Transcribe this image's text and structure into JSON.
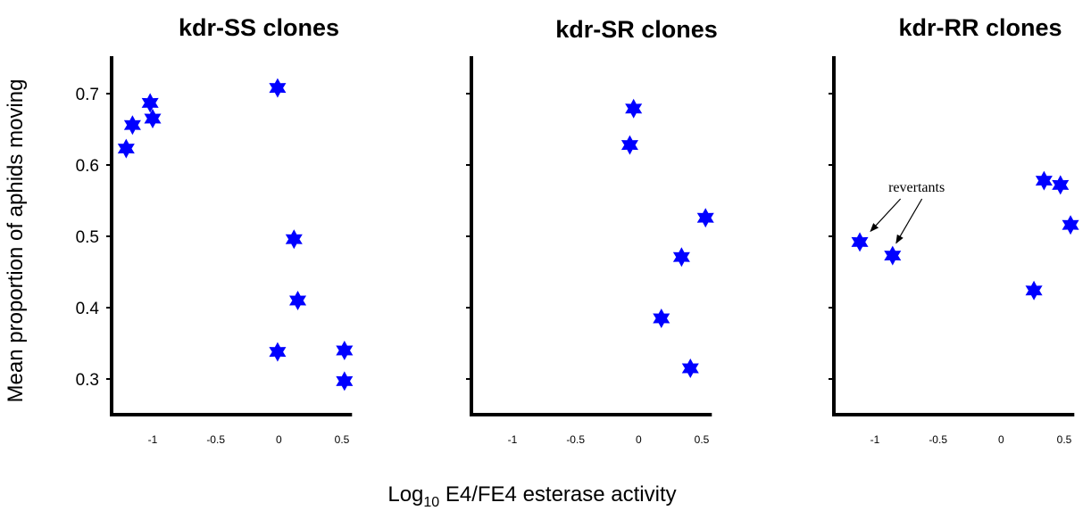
{
  "chart_data": {
    "type": "scatter",
    "ylabel": "Mean proportion of aphids moving",
    "xlabel_main": "Log",
    "xlabel_sub": "10",
    "xlabel_rest": " E4/FE4 esterase activity",
    "ylim": [
      0.25,
      0.75
    ],
    "yticks": [
      "0.3",
      "0.4",
      "0.5",
      "0.6",
      "0.7"
    ],
    "ytick_values": [
      0.3,
      0.4,
      0.5,
      0.6,
      0.7
    ],
    "xlim": [
      -1.3,
      0.58
    ],
    "xticks": [
      "-1",
      "-0.5",
      "0",
      "0.5"
    ],
    "xtick_values": [
      -1,
      -0.5,
      0,
      0.5
    ],
    "marker_color": "#0000ff",
    "marker_shape": "six-pointed-star",
    "grid": false,
    "panels": [
      {
        "title": "kdr-SS clones",
        "points": [
          {
            "x": -1.21,
            "y": 0.623
          },
          {
            "x": -1.16,
            "y": 0.656
          },
          {
            "x": -1.02,
            "y": 0.687
          },
          {
            "x": -1.0,
            "y": 0.665
          },
          {
            "x": -0.01,
            "y": 0.708
          },
          {
            "x": 0.12,
            "y": 0.496
          },
          {
            "x": 0.15,
            "y": 0.41
          },
          {
            "x": -0.01,
            "y": 0.338
          },
          {
            "x": 0.52,
            "y": 0.34
          },
          {
            "x": 0.52,
            "y": 0.297
          }
        ]
      },
      {
        "title": "kdr-SR clones",
        "points": [
          {
            "x": -0.04,
            "y": 0.679
          },
          {
            "x": -0.07,
            "y": 0.628
          },
          {
            "x": 0.53,
            "y": 0.526
          },
          {
            "x": 0.34,
            "y": 0.471
          },
          {
            "x": 0.18,
            "y": 0.385
          },
          {
            "x": 0.41,
            "y": 0.315
          }
        ]
      },
      {
        "title": "kdr-RR clones",
        "points": [
          {
            "x": -1.12,
            "y": 0.492
          },
          {
            "x": -0.86,
            "y": 0.473
          },
          {
            "x": 0.34,
            "y": 0.578
          },
          {
            "x": 0.47,
            "y": 0.572
          },
          {
            "x": 0.55,
            "y": 0.516
          },
          {
            "x": 0.26,
            "y": 0.424
          }
        ],
        "annotation": "revertants"
      }
    ]
  }
}
